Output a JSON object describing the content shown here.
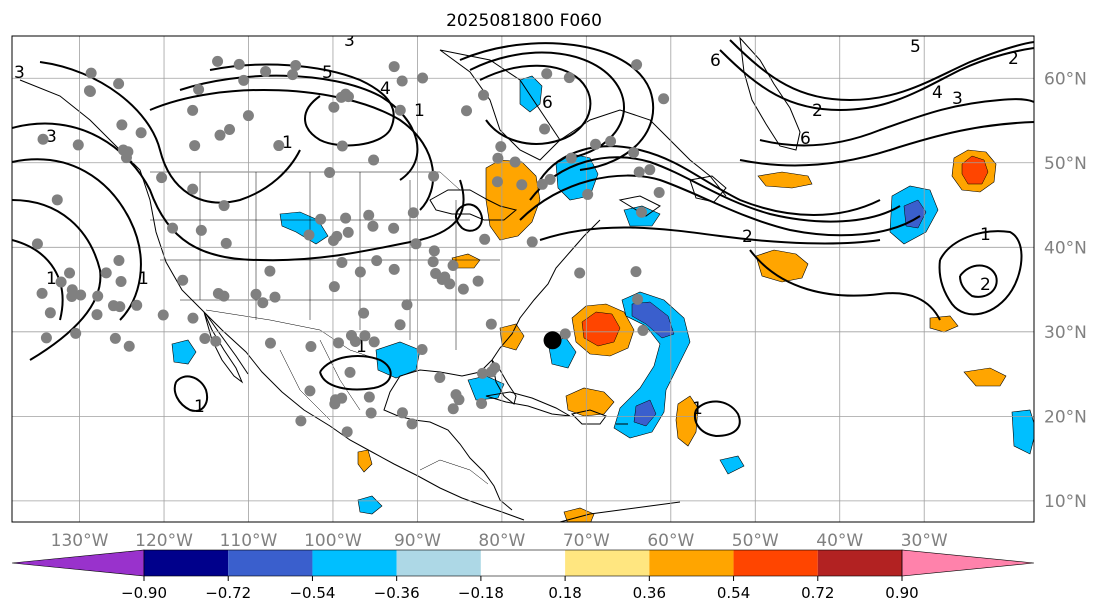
{
  "title": "2025081800 F060",
  "map": {
    "projection": "PlateCarree",
    "extent_lon": [
      -138,
      -17
    ],
    "extent_lat": [
      7.5,
      65
    ],
    "lon_ticks": [
      {
        "lon": -130,
        "label": "130°W"
      },
      {
        "lon": -120,
        "label": "120°W"
      },
      {
        "lon": -110,
        "label": "110°W"
      },
      {
        "lon": -100,
        "label": "100°W"
      },
      {
        "lon": -90,
        "label": "90°W"
      },
      {
        "lon": -80,
        "label": "80°W"
      },
      {
        "lon": -70,
        "label": "70°W"
      },
      {
        "lon": -60,
        "label": "60°W"
      },
      {
        "lon": -50,
        "label": "50°W"
      },
      {
        "lon": -40,
        "label": "40°W"
      },
      {
        "lon": -30,
        "label": "30°W"
      }
    ],
    "lat_ticks": [
      {
        "lat": 60,
        "label": "60°N"
      },
      {
        "lat": 50,
        "label": "50°N"
      },
      {
        "lat": 40,
        "label": "40°N"
      },
      {
        "lat": 30,
        "label": "30°N"
      },
      {
        "lat": 20,
        "label": "20°N"
      },
      {
        "lat": 10,
        "label": "10°N"
      }
    ],
    "grid": true,
    "contour_labels": [
      "1",
      "2",
      "3",
      "4",
      "5",
      "6"
    ],
    "storm_center": {
      "lon": -74,
      "lat": 29
    },
    "gray_dot_count": 160
  },
  "colorbar": {
    "orientation": "horizontal",
    "extend": "both",
    "colors": [
      "#9932cc",
      "#00008b",
      "#3a5fcd",
      "#00bfff",
      "#add8e6",
      "#ffffff",
      "#ffe680",
      "#ffa500",
      "#ff4500",
      "#b22222",
      "#ff82ab"
    ],
    "tick_labels": [
      "−0.90",
      "−0.72",
      "−0.54",
      "−0.36",
      "−0.18",
      "0.18",
      "0.36",
      "0.54",
      "0.72",
      "0.90"
    ]
  },
  "shading_colors": {
    "neg_light": "#00bfff",
    "neg_mid": "#3a5fcd",
    "pos_light": "#ffa500",
    "pos_mid": "#ff4500"
  }
}
